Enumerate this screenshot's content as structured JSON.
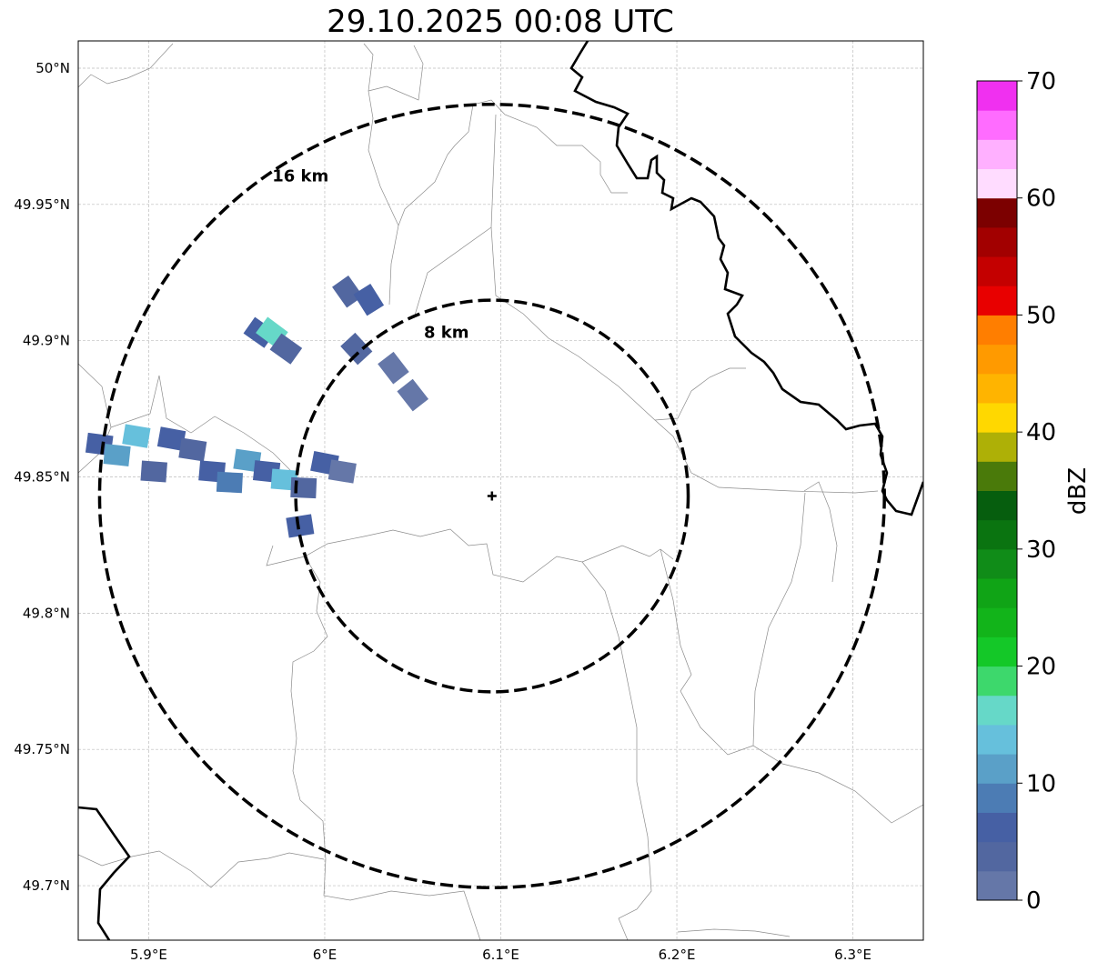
{
  "title": "29.10.2025 00:08 UTC",
  "map": {
    "lon_range": [
      5.86,
      6.34
    ],
    "lat_range": [
      49.68,
      50.01
    ],
    "lon_ticks": [
      {
        "value": 5.9,
        "label": "5.9°E"
      },
      {
        "value": 6.0,
        "label": "6°E"
      },
      {
        "value": 6.1,
        "label": "6.1°E"
      },
      {
        "value": 6.2,
        "label": "6.2°E"
      },
      {
        "value": 6.3,
        "label": "6.3°E"
      }
    ],
    "lat_ticks": [
      {
        "value": 49.7,
        "label": "49.7°N"
      },
      {
        "value": 49.75,
        "label": "49.75°N"
      },
      {
        "value": 49.8,
        "label": "49.8°N"
      },
      {
        "value": 49.85,
        "label": "49.85°N"
      },
      {
        "value": 49.9,
        "label": "49.9°N"
      },
      {
        "value": 49.95,
        "label": "49.95°N"
      },
      {
        "value": 50.0,
        "label": "50°N"
      }
    ],
    "gridlines": true,
    "radar_site": {
      "lon": 6.095,
      "lat": 49.843
    },
    "range_rings": [
      {
        "label": "8 km",
        "radius_km": 8
      },
      {
        "label": "16 km",
        "radius_km": 16
      }
    ],
    "ring_style": {
      "color": "#000000",
      "dashed": true
    }
  },
  "colorbar": {
    "label": "dBZ",
    "min": 0,
    "max": 70,
    "step": 2.5,
    "tick_values": [
      0,
      10,
      20,
      30,
      40,
      50,
      60,
      70
    ],
    "tick_labels": [
      "0",
      "10",
      "20",
      "30",
      "40",
      "50",
      "60",
      "70"
    ],
    "colors": [
      "#6577a8",
      "#5267a0",
      "#4660a4",
      "#4c7cb4",
      "#5aa0c8",
      "#66c0dc",
      "#66d8c8",
      "#3dd86c",
      "#14c828",
      "#12b41a",
      "#10a416",
      "#108c18",
      "#0a7410",
      "#065e0e",
      "#4a7a0a",
      "#aeb006",
      "#ffd800",
      "#ffb400",
      "#ff9a00",
      "#ff7e00",
      "#e80000",
      "#c40000",
      "#a20000",
      "#7c0000",
      "#ffdcff",
      "#ffb0ff",
      "#ff6cff",
      "#f030f0"
    ]
  },
  "reflectivity_cells": [
    {
      "lon": 5.872,
      "lat": 49.862,
      "dbz": 6
    },
    {
      "lon": 5.882,
      "lat": 49.858,
      "dbz": 12
    },
    {
      "lon": 5.893,
      "lat": 49.865,
      "dbz": 14
    },
    {
      "lon": 5.903,
      "lat": 49.852,
      "dbz": 4
    },
    {
      "lon": 5.913,
      "lat": 49.864,
      "dbz": 5
    },
    {
      "lon": 5.925,
      "lat": 49.86,
      "dbz": 3
    },
    {
      "lon": 5.936,
      "lat": 49.852,
      "dbz": 5
    },
    {
      "lon": 5.946,
      "lat": 49.848,
      "dbz": 8
    },
    {
      "lon": 5.956,
      "lat": 49.856,
      "dbz": 12
    },
    {
      "lon": 5.967,
      "lat": 49.852,
      "dbz": 7
    },
    {
      "lon": 5.977,
      "lat": 49.849,
      "dbz": 14
    },
    {
      "lon": 5.988,
      "lat": 49.846,
      "dbz": 3
    },
    {
      "lon": 6.0,
      "lat": 49.855,
      "dbz": 6
    },
    {
      "lon": 6.01,
      "lat": 49.852,
      "dbz": 2
    },
    {
      "lon": 5.986,
      "lat": 49.832,
      "dbz": 5
    },
    {
      "lon": 5.963,
      "lat": 49.903,
      "dbz": 5
    },
    {
      "lon": 5.97,
      "lat": 49.903,
      "dbz": 16
    },
    {
      "lon": 5.978,
      "lat": 49.897,
      "dbz": 3
    },
    {
      "lon": 6.013,
      "lat": 49.918,
      "dbz": 4
    },
    {
      "lon": 6.025,
      "lat": 49.915,
      "dbz": 5
    },
    {
      "lon": 6.018,
      "lat": 49.897,
      "dbz": 3
    },
    {
      "lon": 6.039,
      "lat": 49.89,
      "dbz": 2
    },
    {
      "lon": 6.05,
      "lat": 49.88,
      "dbz": 1
    }
  ]
}
